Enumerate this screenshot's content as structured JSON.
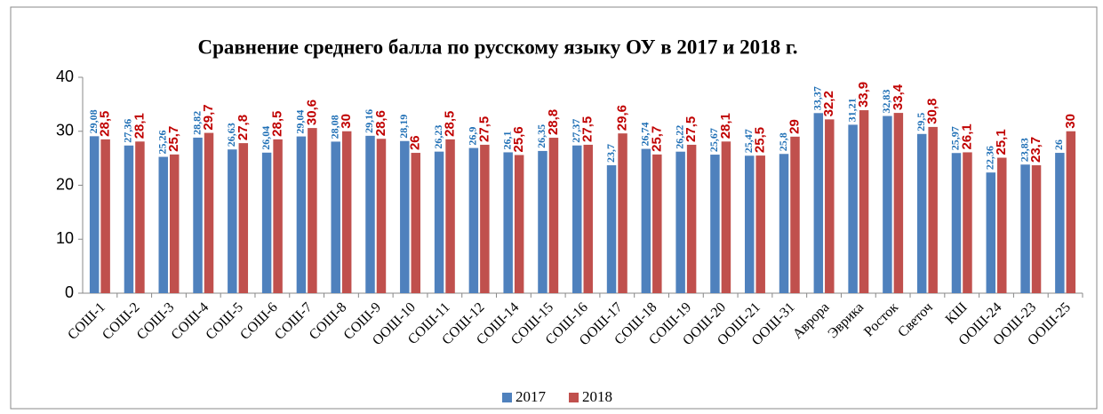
{
  "chart_data": {
    "type": "bar",
    "title": "Сравнение среднего балла по русскому языку ОУ в  2017 и 2018 г.",
    "categories": [
      "СОШ-1",
      "СОШ-2",
      "СОШ-3",
      "СОШ-4",
      "СОШ-5",
      "СОШ-6",
      "СОШ-7",
      "СОШ-8",
      "СОШ-9",
      "ООШ-10",
      "СОШ-11",
      "СОШ-12",
      "СОШ-14",
      "СОШ-15",
      "СОШ-16",
      "ООШ-17",
      "СОШ-18",
      "СОШ-19",
      "ООШ-20",
      "ООШ-21",
      "ООШ-31",
      "Аврора",
      "Эврика",
      "Росток",
      "Светоч",
      "КШ",
      "ООШ-24",
      "ООШ-23",
      "ООШ-25"
    ],
    "series": [
      {
        "name": "2017",
        "color": "#4f81bd",
        "values": [
          29.08,
          27.36,
          25.26,
          28.82,
          26.63,
          26.04,
          29.04,
          28.08,
          29.16,
          28.19,
          26.23,
          26.9,
          26.1,
          26.35,
          27.37,
          23.7,
          26.74,
          26.22,
          25.67,
          25.47,
          25.8,
          33.37,
          31.21,
          32.83,
          29.5,
          25.97,
          22.36,
          23.83,
          26
        ],
        "value_labels": [
          "29,08",
          "27,36",
          "25,26",
          "28,82",
          "26,63",
          "26,04",
          "29,04",
          "28,08",
          "29,16",
          "28,19",
          "26,23",
          "26,9",
          "26,1",
          "26,35",
          "27,37",
          "23,7",
          "26,74",
          "26,22",
          "25,67",
          "25,47",
          "25,8",
          "33,37",
          "31,21",
          "32,83",
          "29,5",
          "25,97",
          "22,36",
          "23,83",
          "26"
        ]
      },
      {
        "name": "2018",
        "color": "#c0504d",
        "values": [
          28.5,
          28.1,
          25.7,
          29.7,
          27.8,
          28.5,
          30.6,
          30,
          28.6,
          26,
          28.5,
          27.5,
          25.6,
          28.8,
          27.5,
          29.6,
          25.7,
          27.5,
          28.1,
          25.5,
          29,
          32.2,
          33.9,
          33.4,
          30.8,
          26.1,
          25.1,
          23.7,
          30
        ],
        "value_labels": [
          "28,5",
          "28,1",
          "25,7",
          "29,7",
          "27,8",
          "28,5",
          "30,6",
          "30",
          "28,6",
          "26",
          "28,5",
          "27,5",
          "25,6",
          "28,8",
          "27,5",
          "29,6",
          "25,7",
          "27,5",
          "28,1",
          "25,5",
          "29",
          "32,2",
          "33,9",
          "33,4",
          "30,8",
          "26,1",
          "25,1",
          "23,7",
          "30"
        ]
      }
    ],
    "ylim": [
      0,
      40
    ],
    "yticks": [
      0,
      10,
      20,
      30,
      40
    ],
    "grid": false,
    "legend": "bottom"
  }
}
